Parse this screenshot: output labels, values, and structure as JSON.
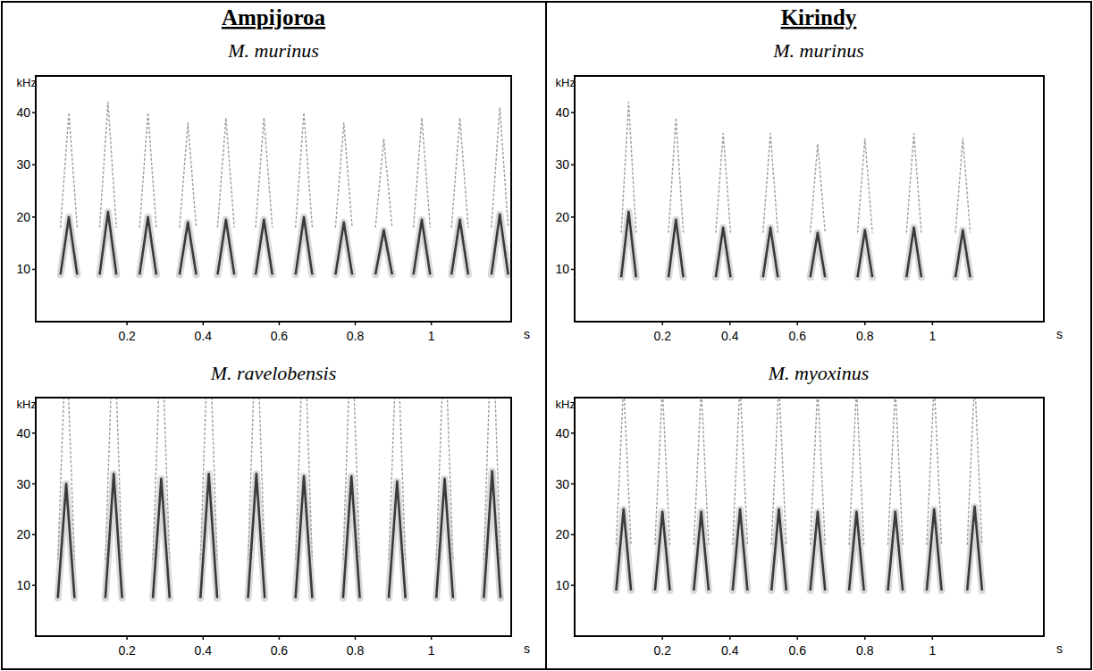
{
  "sites": [
    "Ampijoroa",
    "Kirindy"
  ],
  "chart_data": [
    {
      "type": "spectrogram",
      "title": "M. murinus",
      "y_label": "kHz",
      "x_label": "s",
      "xlim": [
        -0.04,
        1.21
      ],
      "xticks": [
        0.2,
        0.4,
        0.6,
        0.8,
        1
      ],
      "ylim": [
        0,
        47
      ],
      "yticks": [
        10,
        20,
        30,
        40
      ],
      "x": [
        0.047,
        0.15,
        0.255,
        0.36,
        0.46,
        0.56,
        0.665,
        0.77,
        0.875,
        0.975,
        1.075,
        1.18
      ],
      "values": [
        20,
        21,
        20,
        19,
        19.5,
        19.5,
        20,
        19,
        17.5,
        19.5,
        19.5,
        20.5
      ],
      "base_values": [
        9,
        9,
        9,
        9,
        9,
        9,
        9,
        9,
        9,
        9,
        9,
        9
      ]
    },
    {
      "type": "spectrogram",
      "title": "M. ravelobensis",
      "y_label": "kHz",
      "x_label": "s",
      "xlim": [
        -0.04,
        1.21
      ],
      "xticks": [
        0.2,
        0.4,
        0.6,
        0.8,
        1
      ],
      "ylim": [
        0,
        47
      ],
      "yticks": [
        10,
        20,
        30,
        40
      ],
      "x": [
        0.04,
        0.165,
        0.29,
        0.415,
        0.54,
        0.665,
        0.79,
        0.91,
        1.035,
        1.16
      ],
      "values": [
        30,
        32,
        31,
        32,
        32,
        31.5,
        31.5,
        30.5,
        31,
        32.5
      ],
      "base_values": [
        7.5,
        7.5,
        7.5,
        7.5,
        7.5,
        7.5,
        7.5,
        7.5,
        7.5,
        7.5
      ]
    },
    {
      "type": "spectrogram",
      "title": "M. murinus",
      "y_label": "kHz",
      "x_label": "s",
      "xlim": [
        -0.06,
        1.33
      ],
      "xticks": [
        0.2,
        0.4,
        0.6,
        0.8,
        1
      ],
      "ylim": [
        0,
        47
      ],
      "yticks": [
        10,
        20,
        30,
        40
      ],
      "x": [
        0.1,
        0.24,
        0.38,
        0.52,
        0.66,
        0.8,
        0.945,
        1.09
      ],
      "values": [
        21,
        19.5,
        18,
        18,
        17,
        17.5,
        18,
        17.5
      ],
      "base_values": [
        8.5,
        8.5,
        8.5,
        8.5,
        8.5,
        8.5,
        8.5,
        8.5
      ]
    },
    {
      "type": "spectrogram",
      "title": "M. myoxinus",
      "y_label": "kHz",
      "x_label": "s",
      "xlim": [
        -0.06,
        1.33
      ],
      "xticks": [
        0.2,
        0.4,
        0.6,
        0.8,
        1
      ],
      "ylim": [
        0,
        47
      ],
      "yticks": [
        10,
        20,
        30,
        40
      ],
      "x": [
        0.085,
        0.2,
        0.315,
        0.43,
        0.545,
        0.66,
        0.775,
        0.89,
        1.005,
        1.125
      ],
      "values": [
        25,
        24.5,
        24.5,
        25,
        25,
        24.5,
        24.5,
        24.5,
        25,
        25.5
      ],
      "base_values": [
        9,
        9,
        9,
        9,
        9,
        9,
        9,
        9,
        9,
        9
      ]
    }
  ]
}
